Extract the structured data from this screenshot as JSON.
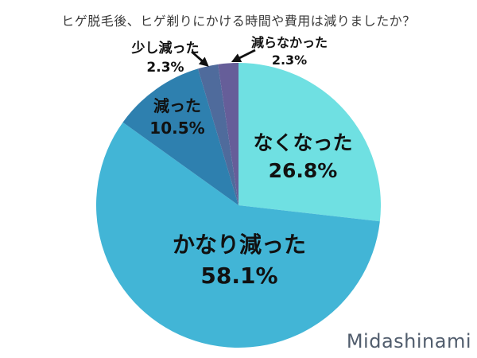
{
  "title": "ヒゲ脱毛後、ヒゲ剃りにかける時間や費用は減りましたか？",
  "watermark": "Midashinami",
  "chart_data": {
    "type": "pie",
    "title": "ヒゲ脱毛後、ヒゲ剃りにかける時間や費用は減りましたか？",
    "start_angle_deg": 0,
    "direction": "clockwise",
    "legend_position": "none",
    "slices": [
      {
        "label": "なくなった",
        "value": 26.8,
        "pct_label": "26.8%",
        "color": "#6fe0e2",
        "label_placement": "inside"
      },
      {
        "label": "かなり減った",
        "value": 58.1,
        "pct_label": "58.1%",
        "color": "#42b5d6",
        "label_placement": "inside"
      },
      {
        "label": "減った",
        "value": 10.5,
        "pct_label": "10.5%",
        "color": "#2e80af",
        "label_placement": "inside"
      },
      {
        "label": "少し減った",
        "value": 2.3,
        "pct_label": "2.3%",
        "color": "#4f6b9c",
        "label_placement": "callout-arrow"
      },
      {
        "label": "減らなかった",
        "value": 2.3,
        "pct_label": "2.3%",
        "color": "#665e99",
        "label_placement": "callout-arrow"
      }
    ]
  }
}
